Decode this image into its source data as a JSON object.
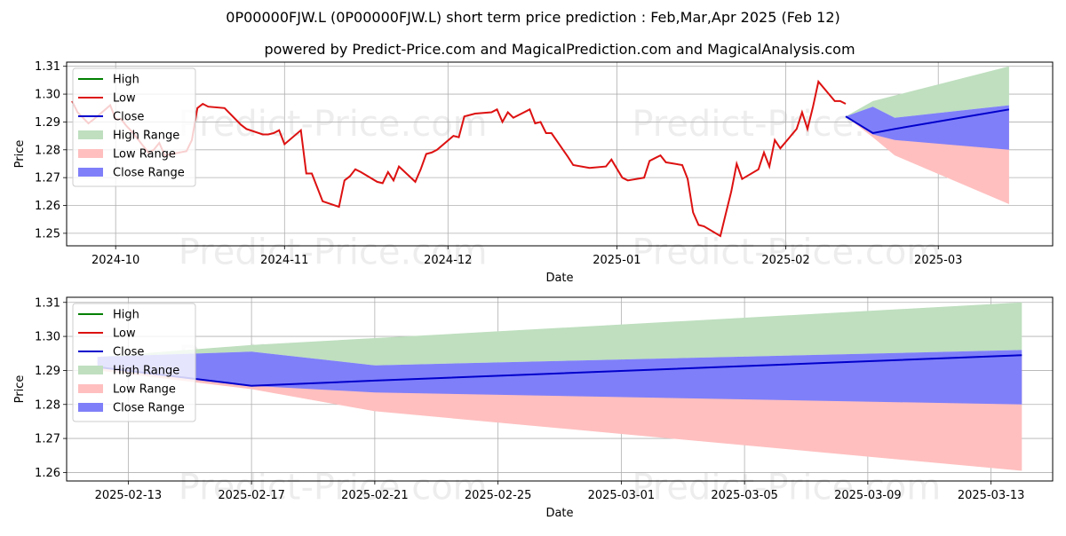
{
  "header": {
    "title": "0P00000FJW.L (0P00000FJW.L) short term price prediction : Feb,Mar,Apr 2025 (Feb 12)",
    "subtitle": "powered by Predict-Price.com and MagicalPrediction.com and MagicalAnalysis.com"
  },
  "watermark": "Predict-Price.com",
  "colors": {
    "high": "#008000",
    "low": "#dd1111",
    "close": "#0000cc",
    "high_range": "#bfdfbf",
    "low_range": "#ffbfbf",
    "close_range": "#7f7ff9",
    "grid": "#b0b0b0"
  },
  "legend": {
    "placement": "top-left",
    "entries": [
      "High",
      "Low",
      "Close",
      "High Range",
      "Low Range",
      "Close Range"
    ]
  },
  "chart_data": [
    {
      "type": "line",
      "xlabel": "Date",
      "ylabel": "Price",
      "xlim": [
        "2025-09-22",
        "2025-03-22"
      ],
      "ylim": [
        1.2455,
        1.3115
      ],
      "grid": true,
      "x_ticks": [
        "2024-10",
        "2024-11",
        "2024-12",
        "2025-01",
        "2025-02",
        "2025-03"
      ],
      "x_tick_dates": [
        "2024-10-01",
        "2024-11-01",
        "2024-12-01",
        "2025-01-01",
        "2025-02-01",
        "2025-03-01"
      ],
      "y_ticks": [
        1.25,
        1.26,
        1.27,
        1.28,
        1.29,
        1.3,
        1.31
      ],
      "history": {
        "dates": [
          "2024-09-23",
          "2024-09-24",
          "2024-09-26",
          "2024-09-27",
          "2024-09-30",
          "2024-10-01",
          "2024-10-02",
          "2024-10-03",
          "2024-10-04",
          "2024-10-07",
          "2024-10-08",
          "2024-10-09",
          "2024-10-10",
          "2024-10-14",
          "2024-10-15",
          "2024-10-16",
          "2024-10-17",
          "2024-10-18",
          "2024-10-21",
          "2024-10-24",
          "2024-10-25",
          "2024-10-28",
          "2024-10-29",
          "2024-10-30",
          "2024-10-31",
          "2024-11-01",
          "2024-11-04",
          "2024-11-05",
          "2024-11-06",
          "2024-11-07",
          "2024-11-08",
          "2024-11-11",
          "2024-11-12",
          "2024-11-13",
          "2024-11-14",
          "2024-11-15",
          "2024-11-18",
          "2024-11-19",
          "2024-11-20",
          "2024-11-21",
          "2024-11-22",
          "2024-11-25",
          "2024-11-26",
          "2024-11-27",
          "2024-11-28",
          "2024-11-29",
          "2024-12-02",
          "2024-12-03",
          "2024-12-04",
          "2024-12-05",
          "2024-12-06",
          "2024-12-09",
          "2024-12-10",
          "2024-12-11",
          "2024-12-12",
          "2024-12-13",
          "2024-12-16",
          "2024-12-17",
          "2024-12-18",
          "2024-12-19",
          "2024-12-20",
          "2024-12-23",
          "2024-12-24",
          "2024-12-27",
          "2024-12-30",
          "2024-12-31",
          "2025-01-02",
          "2025-01-03",
          "2025-01-06",
          "2025-01-07",
          "2025-01-08",
          "2025-01-09",
          "2025-01-10",
          "2025-01-13",
          "2025-01-14",
          "2025-01-15",
          "2025-01-16",
          "2025-01-17",
          "2025-01-20",
          "2025-01-21",
          "2025-01-22",
          "2025-01-23",
          "2025-01-24",
          "2025-01-27",
          "2025-01-28",
          "2025-01-29",
          "2025-01-30",
          "2025-01-31",
          "2025-02-03",
          "2025-02-04",
          "2025-02-05",
          "2025-02-06",
          "2025-02-07",
          "2025-02-10",
          "2025-02-11",
          "2025-02-12"
        ],
        "low": [
          1.2975,
          1.2935,
          1.2895,
          1.291,
          1.296,
          1.291,
          1.291,
          1.2885,
          1.2865,
          1.279,
          1.28,
          1.2825,
          1.278,
          1.2795,
          1.2835,
          1.295,
          1.2965,
          1.2955,
          1.295,
          1.289,
          1.2875,
          1.2855,
          1.2855,
          1.286,
          1.287,
          1.282,
          1.287,
          1.2715,
          1.2715,
          1.2665,
          1.2615,
          1.2595,
          1.269,
          1.2705,
          1.273,
          1.272,
          1.2685,
          1.268,
          1.272,
          1.269,
          1.274,
          1.2685,
          1.273,
          1.2785,
          1.279,
          1.28,
          1.285,
          1.2845,
          1.292,
          1.2925,
          1.293,
          1.2935,
          1.2945,
          1.29,
          1.2935,
          1.2915,
          1.2945,
          1.2895,
          1.29,
          1.286,
          1.286,
          1.2775,
          1.2745,
          1.2735,
          1.274,
          1.2765,
          1.27,
          1.269,
          1.27,
          1.276,
          1.277,
          1.278,
          1.2755,
          1.2745,
          1.2695,
          1.2575,
          1.253,
          1.2525,
          1.249,
          1.257,
          1.265,
          1.275,
          1.2695,
          1.273,
          1.279,
          1.274,
          1.2835,
          1.2805,
          1.2875,
          1.2935,
          1.2875,
          1.2955,
          1.3045,
          1.2975,
          1.2975,
          1.2965
        ]
      },
      "forecast": {
        "dates": [
          "2025-02-12",
          "2025-02-17",
          "2025-02-21",
          "2025-03-14"
        ],
        "close": [
          1.292,
          1.286,
          1.2875,
          1.2945
        ],
        "high_range": {
          "lower": [
            1.292,
            1.2955,
            1.2915,
            1.296
          ],
          "upper": [
            1.292,
            1.2975,
            1.2995,
            1.31
          ]
        },
        "low_range": {
          "lower": [
            1.292,
            1.2845,
            1.278,
            1.2605
          ],
          "upper": [
            1.292,
            1.286,
            1.2875,
            1.2945
          ]
        },
        "close_range": {
          "lower": [
            1.292,
            1.2855,
            1.2835,
            1.28
          ],
          "upper": [
            1.292,
            1.2955,
            1.2915,
            1.296
          ]
        }
      }
    },
    {
      "type": "line",
      "xlabel": "Date",
      "ylabel": "Price",
      "xlim": [
        "2025-02-11",
        "2025-03-15"
      ],
      "ylim": [
        1.2575,
        1.3115
      ],
      "grid": true,
      "x_ticks": [
        "2025-02-13",
        "2025-02-17",
        "2025-02-21",
        "2025-02-25",
        "2025-03-01",
        "2025-03-05",
        "2025-03-09",
        "2025-03-13"
      ],
      "y_ticks": [
        1.26,
        1.27,
        1.28,
        1.29,
        1.3,
        1.31
      ],
      "forecast": {
        "dates": [
          "2025-02-12",
          "2025-02-17",
          "2025-02-21",
          "2025-03-14"
        ],
        "close": [
          1.291,
          1.2855,
          1.287,
          1.2945
        ],
        "high_range": {
          "lower": [
            1.294,
            1.2955,
            1.2915,
            1.296
          ],
          "upper": [
            1.294,
            1.2975,
            1.2995,
            1.31
          ]
        },
        "low_range": {
          "lower": [
            1.29,
            1.2845,
            1.278,
            1.2605
          ],
          "upper": [
            1.291,
            1.2855,
            1.287,
            1.2945
          ]
        },
        "close_range": {
          "lower": [
            1.291,
            1.2855,
            1.2835,
            1.28
          ],
          "upper": [
            1.294,
            1.2955,
            1.2915,
            1.296
          ]
        }
      }
    }
  ]
}
